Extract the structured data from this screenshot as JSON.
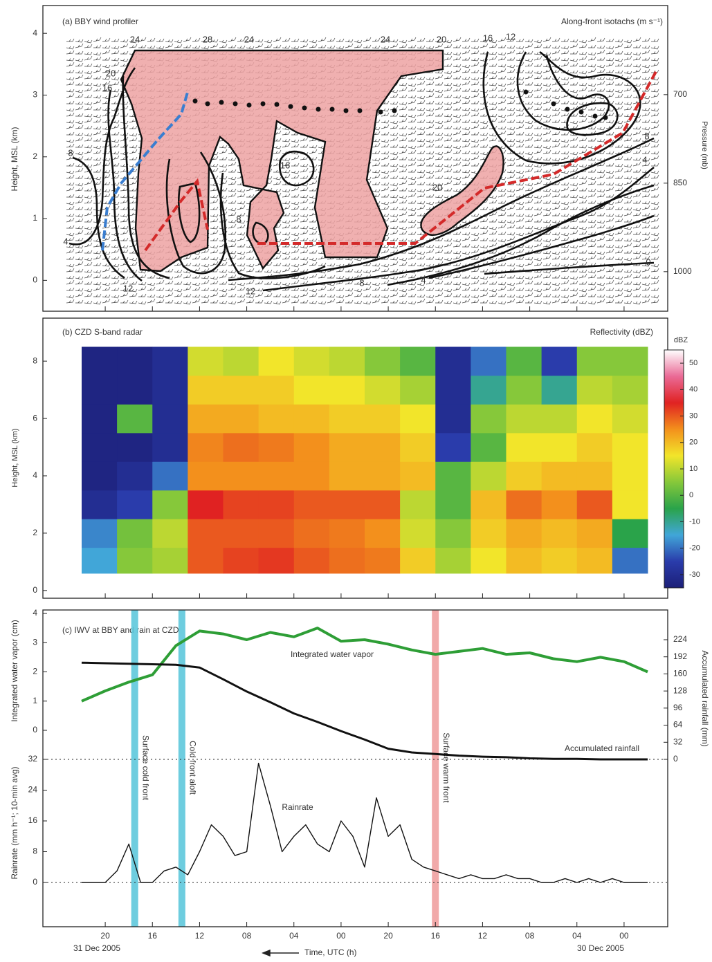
{
  "chart_data": [
    {
      "type": "contour",
      "title": "(a)  BBY wind profiler",
      "subtitle": "Along-front isotachs (m s⁻¹)",
      "ylabel": "Height, MSL (km)",
      "y2label": "Pressure (mb)",
      "xlim": [
        "2005-12-31T22:00",
        "2005-12-29T22:00"
      ],
      "xticks": [
        "2005-12-31T20:00",
        "2005-12-31T16:00",
        "2005-12-31T12:00",
        "2005-12-31T08:00",
        "2005-12-31T04:00",
        "2005-12-31T00:00",
        "2005-12-30T20:00",
        "2005-12-30T16:00",
        "2005-12-30T12:00",
        "2005-12-30T08:00",
        "2005-12-30T04:00",
        "2005-12-30T00:00"
      ],
      "ylim": [
        -0.5,
        4.45
      ],
      "yticks": [
        0,
        1,
        2,
        3,
        4
      ],
      "y2lim": [
        1067,
        549
      ],
      "y2ticks": [
        700,
        850,
        1000
      ],
      "contour_labels": [
        24,
        28,
        24,
        24,
        20,
        16,
        12,
        20,
        16,
        8,
        4,
        12,
        12,
        8,
        4,
        0,
        8,
        4,
        16,
        8,
        20
      ]
    },
    {
      "type": "heatmap",
      "title": "(b)  CZD S-band radar",
      "subtitle": "Reflectivity (dBZ)",
      "ylabel": "Height, MSL (km)",
      "xlim": [
        "2005-12-31T22:00",
        "2005-12-29T22:00"
      ],
      "xticks": [
        "2005-12-31T20:00",
        "2005-12-31T16:00",
        "2005-12-31T12:00",
        "2005-12-31T08:00",
        "2005-12-31T04:00",
        "2005-12-31T00:00",
        "2005-12-30T20:00",
        "2005-12-30T16:00",
        "2005-12-30T12:00",
        "2005-12-30T08:00",
        "2005-12-30T04:00",
        "2005-12-30T00:00"
      ],
      "ylim": [
        -0.27,
        9.5
      ],
      "yticks": [
        0,
        2,
        4,
        6,
        8
      ],
      "x_bins": [
        "2005-12-31T22:00",
        "2005-12-31T19:00",
        "2005-12-31T16:00",
        "2005-12-31T13:00",
        "2005-12-31T10:00",
        "2005-12-31T07:00",
        "2005-12-31T04:00",
        "2005-12-31T01:00",
        "2005-12-30T22:00",
        "2005-12-30T19:00",
        "2005-12-30T16:00",
        "2005-12-30T13:00",
        "2005-12-30T10:00",
        "2005-12-30T07:00",
        "2005-12-30T04:00",
        "2005-12-30T01:00",
        "2005-12-29T22:00"
      ],
      "y_bins": [
        0.6,
        1.5,
        2.5,
        3.5,
        4.5,
        5.5,
        6.5,
        7.5,
        8.5
      ],
      "values": [
        [
          -15,
          5,
          8,
          30,
          32,
          33,
          30,
          28,
          27,
          18,
          8,
          15,
          20,
          18,
          20,
          -20
        ],
        [
          -18,
          3,
          10,
          30,
          30,
          30,
          28,
          27,
          25,
          12,
          5,
          18,
          22,
          20,
          22,
          -5
        ],
        [
          -30,
          -25,
          5,
          35,
          32,
          32,
          30,
          30,
          30,
          10,
          0,
          20,
          28,
          25,
          30,
          15
        ],
        [
          -33,
          -30,
          -20,
          25,
          25,
          25,
          25,
          22,
          22,
          20,
          0,
          10,
          18,
          20,
          20,
          15
        ],
        [
          -33,
          -33,
          -30,
          26,
          28,
          27,
          25,
          22,
          22,
          18,
          -25,
          0,
          15,
          15,
          18,
          15
        ],
        [
          -33,
          0,
          -30,
          22,
          22,
          20,
          20,
          18,
          18,
          15,
          -30,
          5,
          10,
          10,
          15,
          12
        ],
        [
          -33,
          -33,
          -30,
          18,
          18,
          18,
          15,
          15,
          12,
          8,
          -30,
          -10,
          5,
          -10,
          10,
          8
        ],
        [
          -33,
          -33,
          -30,
          12,
          10,
          15,
          12,
          10,
          5,
          0,
          -30,
          -20,
          0,
          -25,
          5,
          5
        ]
      ],
      "colorbar": {
        "label": "dBZ",
        "clim": [
          -35,
          55
        ],
        "ticks": [
          -30,
          -20,
          -10,
          0,
          10,
          20,
          30,
          40,
          50
        ],
        "colors": [
          "#1c1f78",
          "#2a3cab",
          "#41a6d8",
          "#2aa34a",
          "#86c83a",
          "#f2e52a",
          "#f3901c",
          "#e02222",
          "#ea6a96",
          "#ffffff"
        ]
      }
    },
    {
      "type": "line",
      "title": "(c)  IWV at BBY and rain at CZD",
      "xlabel": "Time, UTC (h)",
      "date_labels": [
        "31 Dec 2005",
        "30 Dec 2005"
      ],
      "xlim": [
        "2005-12-31T22:00",
        "2005-12-29T22:00"
      ],
      "xticks": [
        {
          "value": "2005-12-31T20:00",
          "label": "20"
        },
        {
          "value": "2005-12-31T16:00",
          "label": "16"
        },
        {
          "value": "2005-12-31T12:00",
          "label": "12"
        },
        {
          "value": "2005-12-31T08:00",
          "label": "08"
        },
        {
          "value": "2005-12-31T04:00",
          "label": "04"
        },
        {
          "value": "2005-12-31T00:00",
          "label": "00"
        },
        {
          "value": "2005-12-30T20:00",
          "label": "20"
        },
        {
          "value": "2005-12-30T16:00",
          "label": "16"
        },
        {
          "value": "2005-12-30T12:00",
          "label": "12"
        },
        {
          "value": "2005-12-30T08:00",
          "label": "08"
        },
        {
          "value": "2005-12-30T04:00",
          "label": "04"
        },
        {
          "value": "2005-12-30T00:00",
          "label": "00"
        }
      ],
      "ylabel": "Integrated water vapor (cm)",
      "ylim": [
        0,
        4
      ],
      "yticks": [
        0,
        1,
        2,
        3,
        4
      ],
      "y2label": "Accumulated rainfall (mm)",
      "y2lim": [
        0,
        224
      ],
      "y2ticks": [
        0,
        32,
        64,
        96,
        128,
        160,
        192,
        224
      ],
      "y3label": "Rainrate (mm h⁻¹; 10-min avg)",
      "y3lim": [
        0,
        32
      ],
      "y3ticks": [
        0,
        8,
        16,
        24,
        32
      ],
      "series": [
        {
          "name": "Integrated water vapor",
          "color": "#2e9e36",
          "axis": "y",
          "x": [
            "2005-12-31T22:00",
            "2005-12-31T20:00",
            "2005-12-31T18:00",
            "2005-12-31T16:00",
            "2005-12-31T14:00",
            "2005-12-31T12:00",
            "2005-12-31T10:00",
            "2005-12-31T08:00",
            "2005-12-31T06:00",
            "2005-12-31T04:00",
            "2005-12-31T02:00",
            "2005-12-31T00:00",
            "2005-12-30T22:00",
            "2005-12-30T20:00",
            "2005-12-30T18:00",
            "2005-12-30T16:00",
            "2005-12-30T14:00",
            "2005-12-30T12:00",
            "2005-12-30T10:00",
            "2005-12-30T08:00",
            "2005-12-30T06:00",
            "2005-12-30T04:00",
            "2005-12-30T02:00",
            "2005-12-30T00:00",
            "2005-12-29T22:00"
          ],
          "values": [
            1.0,
            1.35,
            1.65,
            1.9,
            2.9,
            3.4,
            3.3,
            3.1,
            3.35,
            3.2,
            3.5,
            3.05,
            3.1,
            2.95,
            2.75,
            2.6,
            2.7,
            2.8,
            2.6,
            2.65,
            2.45,
            2.35,
            2.5,
            2.35,
            2.0
          ]
        },
        {
          "name": "Accumulated rainfall",
          "color": "#111111",
          "axis": "y2",
          "x": [
            "2005-12-31T22:00",
            "2005-12-31T20:00",
            "2005-12-31T18:00",
            "2005-12-31T16:00",
            "2005-12-31T14:00",
            "2005-12-31T12:00",
            "2005-12-31T10:00",
            "2005-12-31T08:00",
            "2005-12-31T06:00",
            "2005-12-31T04:00",
            "2005-12-31T02:00",
            "2005-12-31T00:00",
            "2005-12-30T22:00",
            "2005-12-30T20:00",
            "2005-12-30T18:00",
            "2005-12-30T16:00",
            "2005-12-30T14:00",
            "2005-12-30T12:00",
            "2005-12-30T10:00",
            "2005-12-30T08:00",
            "2005-12-30T06:00",
            "2005-12-30T04:00",
            "2005-12-30T02:00",
            "2005-12-30T00:00",
            "2005-12-29T22:00"
          ],
          "values": [
            181,
            180,
            179,
            178,
            177,
            172,
            150,
            127,
            107,
            86,
            70,
            53,
            37,
            20,
            13,
            10,
            7,
            5,
            4,
            2,
            1,
            1,
            0,
            0,
            0
          ]
        },
        {
          "name": "Rainrate",
          "color": "#111111",
          "axis": "y3",
          "x": [
            "2005-12-31T22:00",
            "2005-12-31T21:00",
            "2005-12-31T20:00",
            "2005-12-31T19:00",
            "2005-12-31T18:00",
            "2005-12-31T17:00",
            "2005-12-31T16:00",
            "2005-12-31T15:00",
            "2005-12-31T14:00",
            "2005-12-31T13:00",
            "2005-12-31T12:00",
            "2005-12-31T11:00",
            "2005-12-31T10:00",
            "2005-12-31T09:00",
            "2005-12-31T08:00",
            "2005-12-31T07:00",
            "2005-12-31T06:00",
            "2005-12-31T05:00",
            "2005-12-31T04:00",
            "2005-12-31T03:00",
            "2005-12-31T02:00",
            "2005-12-31T01:00",
            "2005-12-31T00:00",
            "2005-12-30T23:00",
            "2005-12-30T22:00",
            "2005-12-30T21:00",
            "2005-12-30T20:00",
            "2005-12-30T19:00",
            "2005-12-30T18:00",
            "2005-12-30T17:00",
            "2005-12-30T16:00",
            "2005-12-30T15:00",
            "2005-12-30T14:00",
            "2005-12-30T13:00",
            "2005-12-30T12:00",
            "2005-12-30T11:00",
            "2005-12-30T10:00",
            "2005-12-30T09:00",
            "2005-12-30T08:00",
            "2005-12-30T07:00",
            "2005-12-30T06:00",
            "2005-12-30T05:00",
            "2005-12-30T04:00",
            "2005-12-30T03:00",
            "2005-12-30T02:00",
            "2005-12-30T01:00",
            "2005-12-30T00:00",
            "2005-12-29T23:00",
            "2005-12-29T22:00"
          ],
          "values": [
            0,
            0,
            0,
            3,
            10,
            0,
            0,
            3,
            4,
            2,
            8,
            15,
            12,
            7,
            8,
            31,
            20,
            8,
            12,
            15,
            10,
            8,
            16,
            12,
            4,
            22,
            12,
            15,
            6,
            4,
            3,
            2,
            1,
            2,
            1,
            1,
            2,
            1,
            1,
            0,
            0,
            1,
            0,
            1,
            0,
            1,
            0,
            0,
            0
          ]
        }
      ],
      "fronts": [
        {
          "name": "Surface cold front",
          "x": "2005-12-31T17:30",
          "color": "#5ec8dc"
        },
        {
          "name": "Cold front aloft",
          "x": "2005-12-31T13:30",
          "color": "#5ec8dc"
        },
        {
          "name": "Surface warm front",
          "x": "2005-12-30T16:00",
          "color": "#f0a0a0"
        }
      ]
    }
  ]
}
